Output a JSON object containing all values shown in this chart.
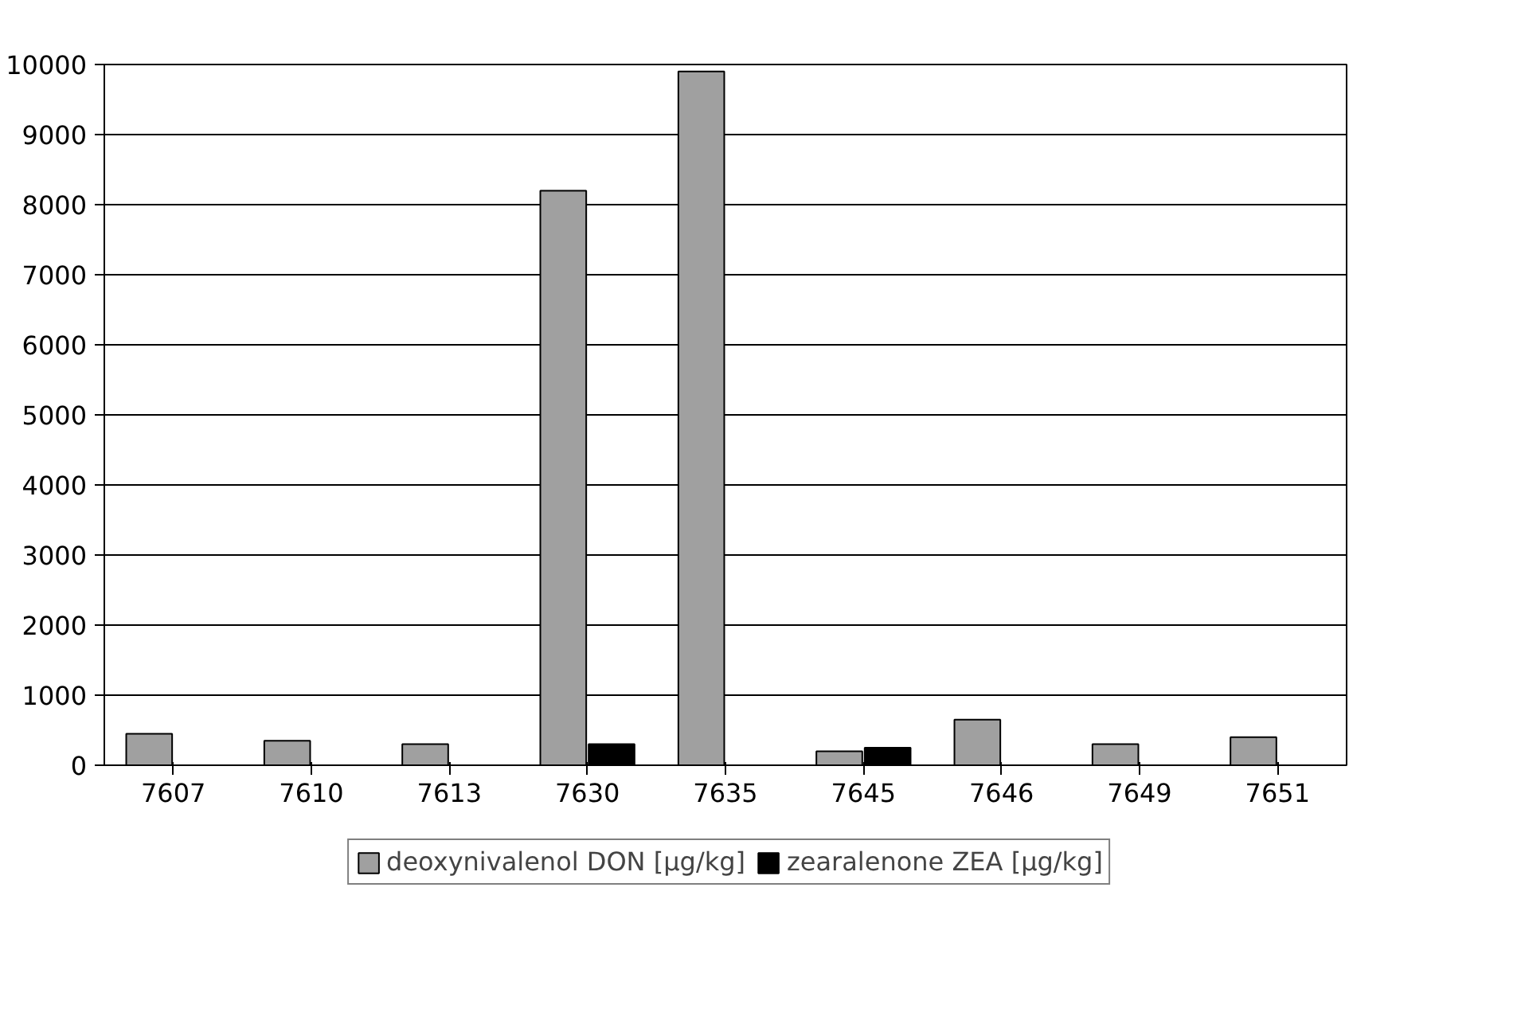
{
  "chart_data": {
    "type": "bar",
    "categories": [
      "7607",
      "7610",
      "7613",
      "7630",
      "7635",
      "7645",
      "7646",
      "7649",
      "7651"
    ],
    "series": [
      {
        "name": "deoxynivalenol DON [µg/kg]",
        "color": "#a0a0a0",
        "values": [
          450,
          350,
          300,
          8200,
          9900,
          200,
          650,
          300,
          400
        ]
      },
      {
        "name": "zearalenone ZEA [µg/kg]",
        "color": "#000000",
        "values": [
          0,
          0,
          0,
          300,
          0,
          250,
          0,
          0,
          0
        ]
      }
    ],
    "ylim": [
      0,
      10000
    ],
    "yticks": [
      0,
      1000,
      2000,
      3000,
      4000,
      5000,
      6000,
      7000,
      8000,
      9000,
      10000
    ],
    "grid": "y",
    "legend": "bottom"
  }
}
